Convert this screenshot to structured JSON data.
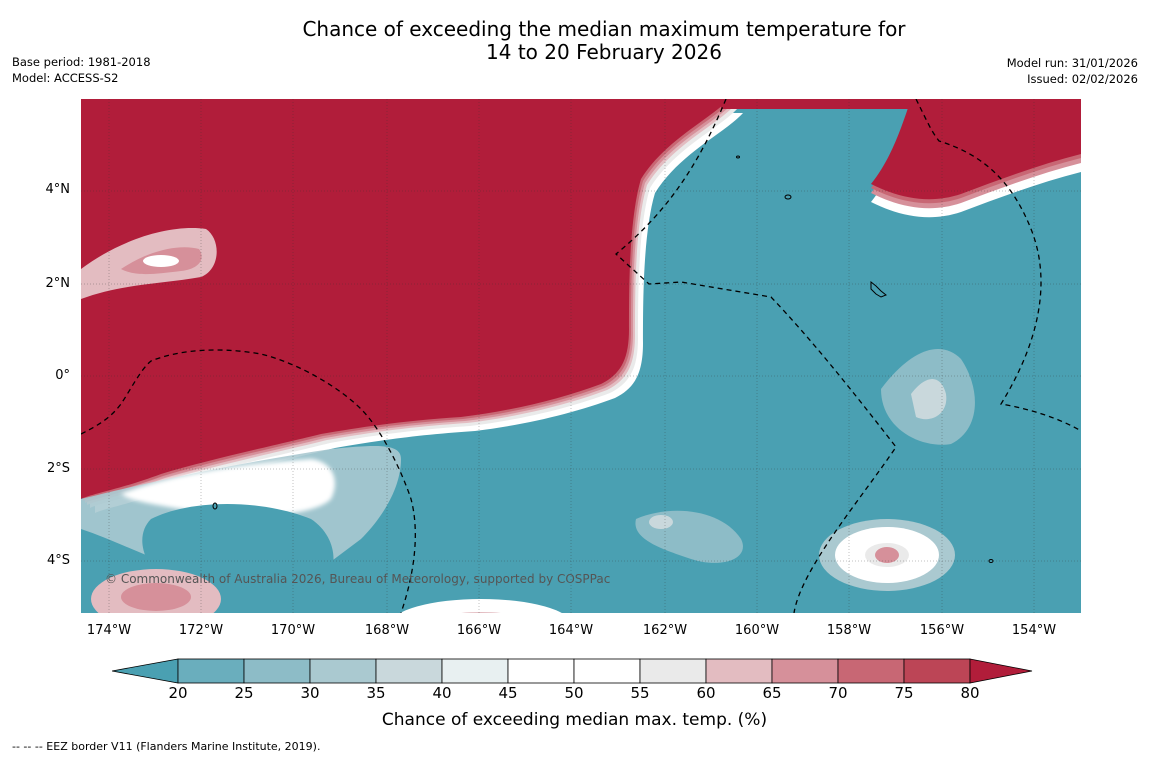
{
  "title": {
    "line1": "Chance of exceeding the median maximum temperature for",
    "line2": "14 to 20 February 2026"
  },
  "meta_left": {
    "base_period": "Base period: 1981-2018",
    "model": "Model: ACCESS-S2"
  },
  "meta_right": {
    "model_run": "Model run: 31/01/2026",
    "issued": "Issued: 02/02/2026"
  },
  "lat_labels": [
    "4°N",
    "2°N",
    "0°",
    "2°S",
    "4°S"
  ],
  "lon_labels": [
    "174°W",
    "172°W",
    "170°W",
    "168°W",
    "166°W",
    "164°W",
    "162°W",
    "160°W",
    "158°W",
    "156°W",
    "154°W"
  ],
  "copyright": "© Commonwealth of Australia 2026, Bureau of Meteorology, supported by COSPPac",
  "colorbar": {
    "ticks": [
      "20",
      "25",
      "30",
      "35",
      "40",
      "45",
      "50",
      "55",
      "60",
      "65",
      "70",
      "75",
      "80"
    ],
    "label": "Chance of exceeding median max. temp. (%)",
    "colors": [
      "#4aa0b2",
      "#6aaebd",
      "#8dbcc7",
      "#aac9d0",
      "#c9d8dc",
      "#e8f0f1",
      "#ffffff",
      "#ffffff",
      "#eaeaea",
      "#e3bcc1",
      "#d6909a",
      "#c86774",
      "#bc4556",
      "#b11d3a"
    ]
  },
  "footer": "--  --  -- EEZ border V11 (Flanders Marine Institute, 2019).",
  "colors": {
    "warm": "#b11d3a",
    "cool": "#4aa0b2"
  }
}
